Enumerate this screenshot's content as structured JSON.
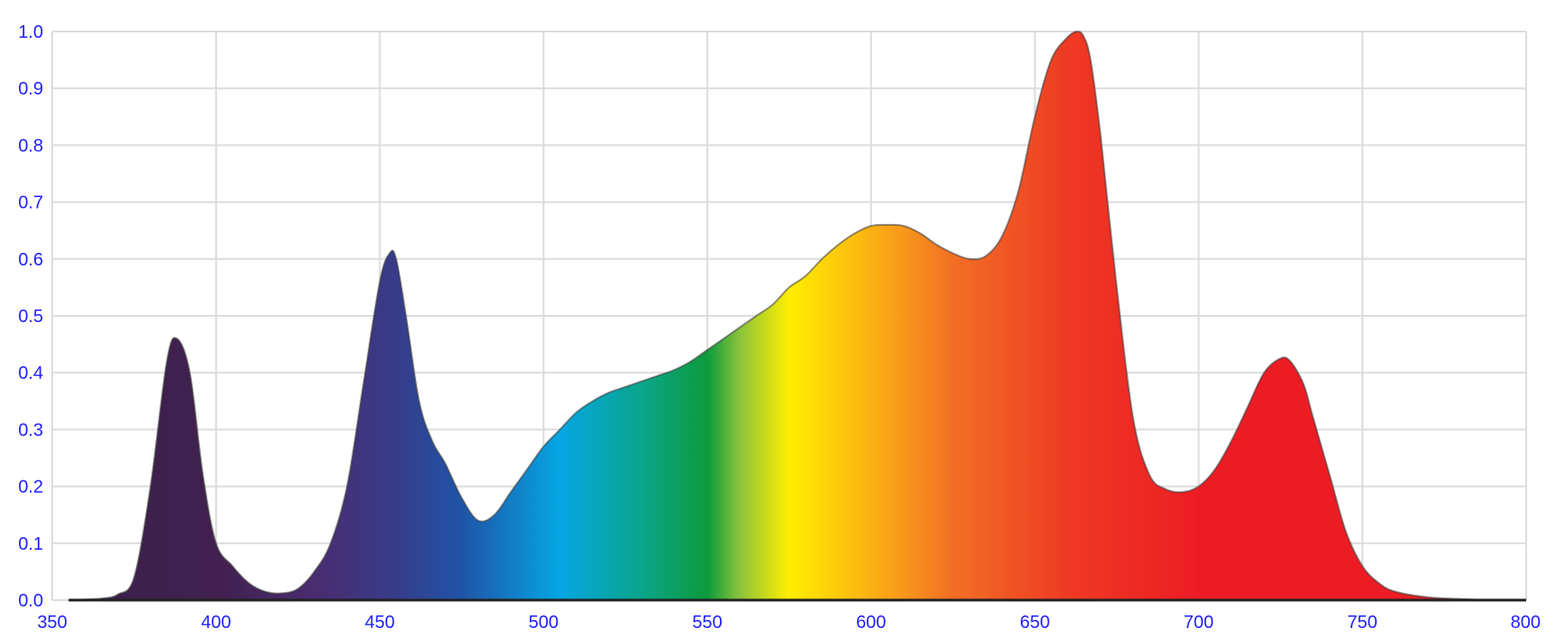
{
  "chart_data": {
    "type": "area",
    "title": "",
    "xlabel": "",
    "ylabel": "",
    "xlim": [
      350,
      800
    ],
    "ylim": [
      0,
      1.0
    ],
    "grid": true,
    "x_ticks": [
      350,
      400,
      450,
      500,
      550,
      600,
      650,
      700,
      750,
      800
    ],
    "x_tick_labels": [
      "350",
      "400",
      "450",
      "500",
      "550",
      "600",
      "650",
      "700",
      "750",
      "800"
    ],
    "y_ticks": [
      0,
      0.1,
      0.2,
      0.3,
      0.4,
      0.5,
      0.6,
      0.7,
      0.8,
      0.9,
      1.0
    ],
    "y_tick_labels": [
      "0.0",
      "0.1",
      "0.2",
      "0.3",
      "0.4",
      "0.5",
      "0.6",
      "0.7",
      "0.8",
      "0.9",
      "1.0"
    ],
    "x": [
      355,
      365,
      370,
      375,
      380,
      385,
      388,
      392,
      396,
      400,
      405,
      410,
      415,
      420,
      425,
      430,
      435,
      440,
      445,
      450,
      453,
      455,
      458,
      462,
      466,
      470,
      475,
      480,
      485,
      490,
      495,
      500,
      505,
      510,
      515,
      520,
      525,
      530,
      535,
      540,
      545,
      550,
      555,
      560,
      565,
      570,
      575,
      580,
      585,
      590,
      595,
      600,
      605,
      610,
      615,
      620,
      625,
      630,
      635,
      640,
      645,
      650,
      655,
      660,
      663,
      665,
      667,
      670,
      675,
      680,
      685,
      690,
      695,
      700,
      705,
      710,
      715,
      720,
      725,
      728,
      732,
      735,
      740,
      745,
      750,
      755,
      760,
      770,
      780,
      790,
      800
    ],
    "y": [
      0.0,
      0.003,
      0.01,
      0.04,
      0.2,
      0.42,
      0.46,
      0.4,
      0.22,
      0.1,
      0.06,
      0.03,
      0.015,
      0.012,
      0.02,
      0.05,
      0.1,
      0.2,
      0.38,
      0.56,
      0.61,
      0.6,
      0.5,
      0.35,
      0.28,
      0.24,
      0.18,
      0.14,
      0.15,
      0.19,
      0.23,
      0.27,
      0.3,
      0.33,
      0.35,
      0.365,
      0.375,
      0.385,
      0.395,
      0.405,
      0.42,
      0.44,
      0.46,
      0.48,
      0.5,
      0.52,
      0.55,
      0.57,
      0.6,
      0.625,
      0.645,
      0.658,
      0.66,
      0.658,
      0.645,
      0.625,
      0.61,
      0.6,
      0.605,
      0.64,
      0.72,
      0.85,
      0.95,
      0.99,
      1.0,
      0.99,
      0.95,
      0.82,
      0.55,
      0.32,
      0.22,
      0.195,
      0.19,
      0.2,
      0.23,
      0.28,
      0.34,
      0.4,
      0.425,
      0.42,
      0.38,
      0.32,
      0.22,
      0.12,
      0.06,
      0.03,
      0.015,
      0.005,
      0.002,
      0.0,
      0.0
    ],
    "colors": {
      "tick_label": "#1f1fff",
      "axis": "#222222",
      "grid": "#dcdcdc",
      "spectrum_stops": [
        {
          "nm": 355,
          "color": "#3b1f4a"
        },
        {
          "nm": 400,
          "color": "#41204f"
        },
        {
          "nm": 430,
          "color": "#4a2c6f"
        },
        {
          "nm": 455,
          "color": "#373c8a"
        },
        {
          "nm": 475,
          "color": "#1f54a8"
        },
        {
          "nm": 505,
          "color": "#05a6e3"
        },
        {
          "nm": 530,
          "color": "#0aa58a"
        },
        {
          "nm": 550,
          "color": "#0d9a3c"
        },
        {
          "nm": 560,
          "color": "#8cc43c"
        },
        {
          "nm": 575,
          "color": "#ffee00"
        },
        {
          "nm": 600,
          "color": "#fbb113"
        },
        {
          "nm": 625,
          "color": "#f26f25"
        },
        {
          "nm": 660,
          "color": "#ee3a23"
        },
        {
          "nm": 700,
          "color": "#ed1c24"
        },
        {
          "nm": 800,
          "color": "#ed1c24"
        }
      ]
    }
  }
}
